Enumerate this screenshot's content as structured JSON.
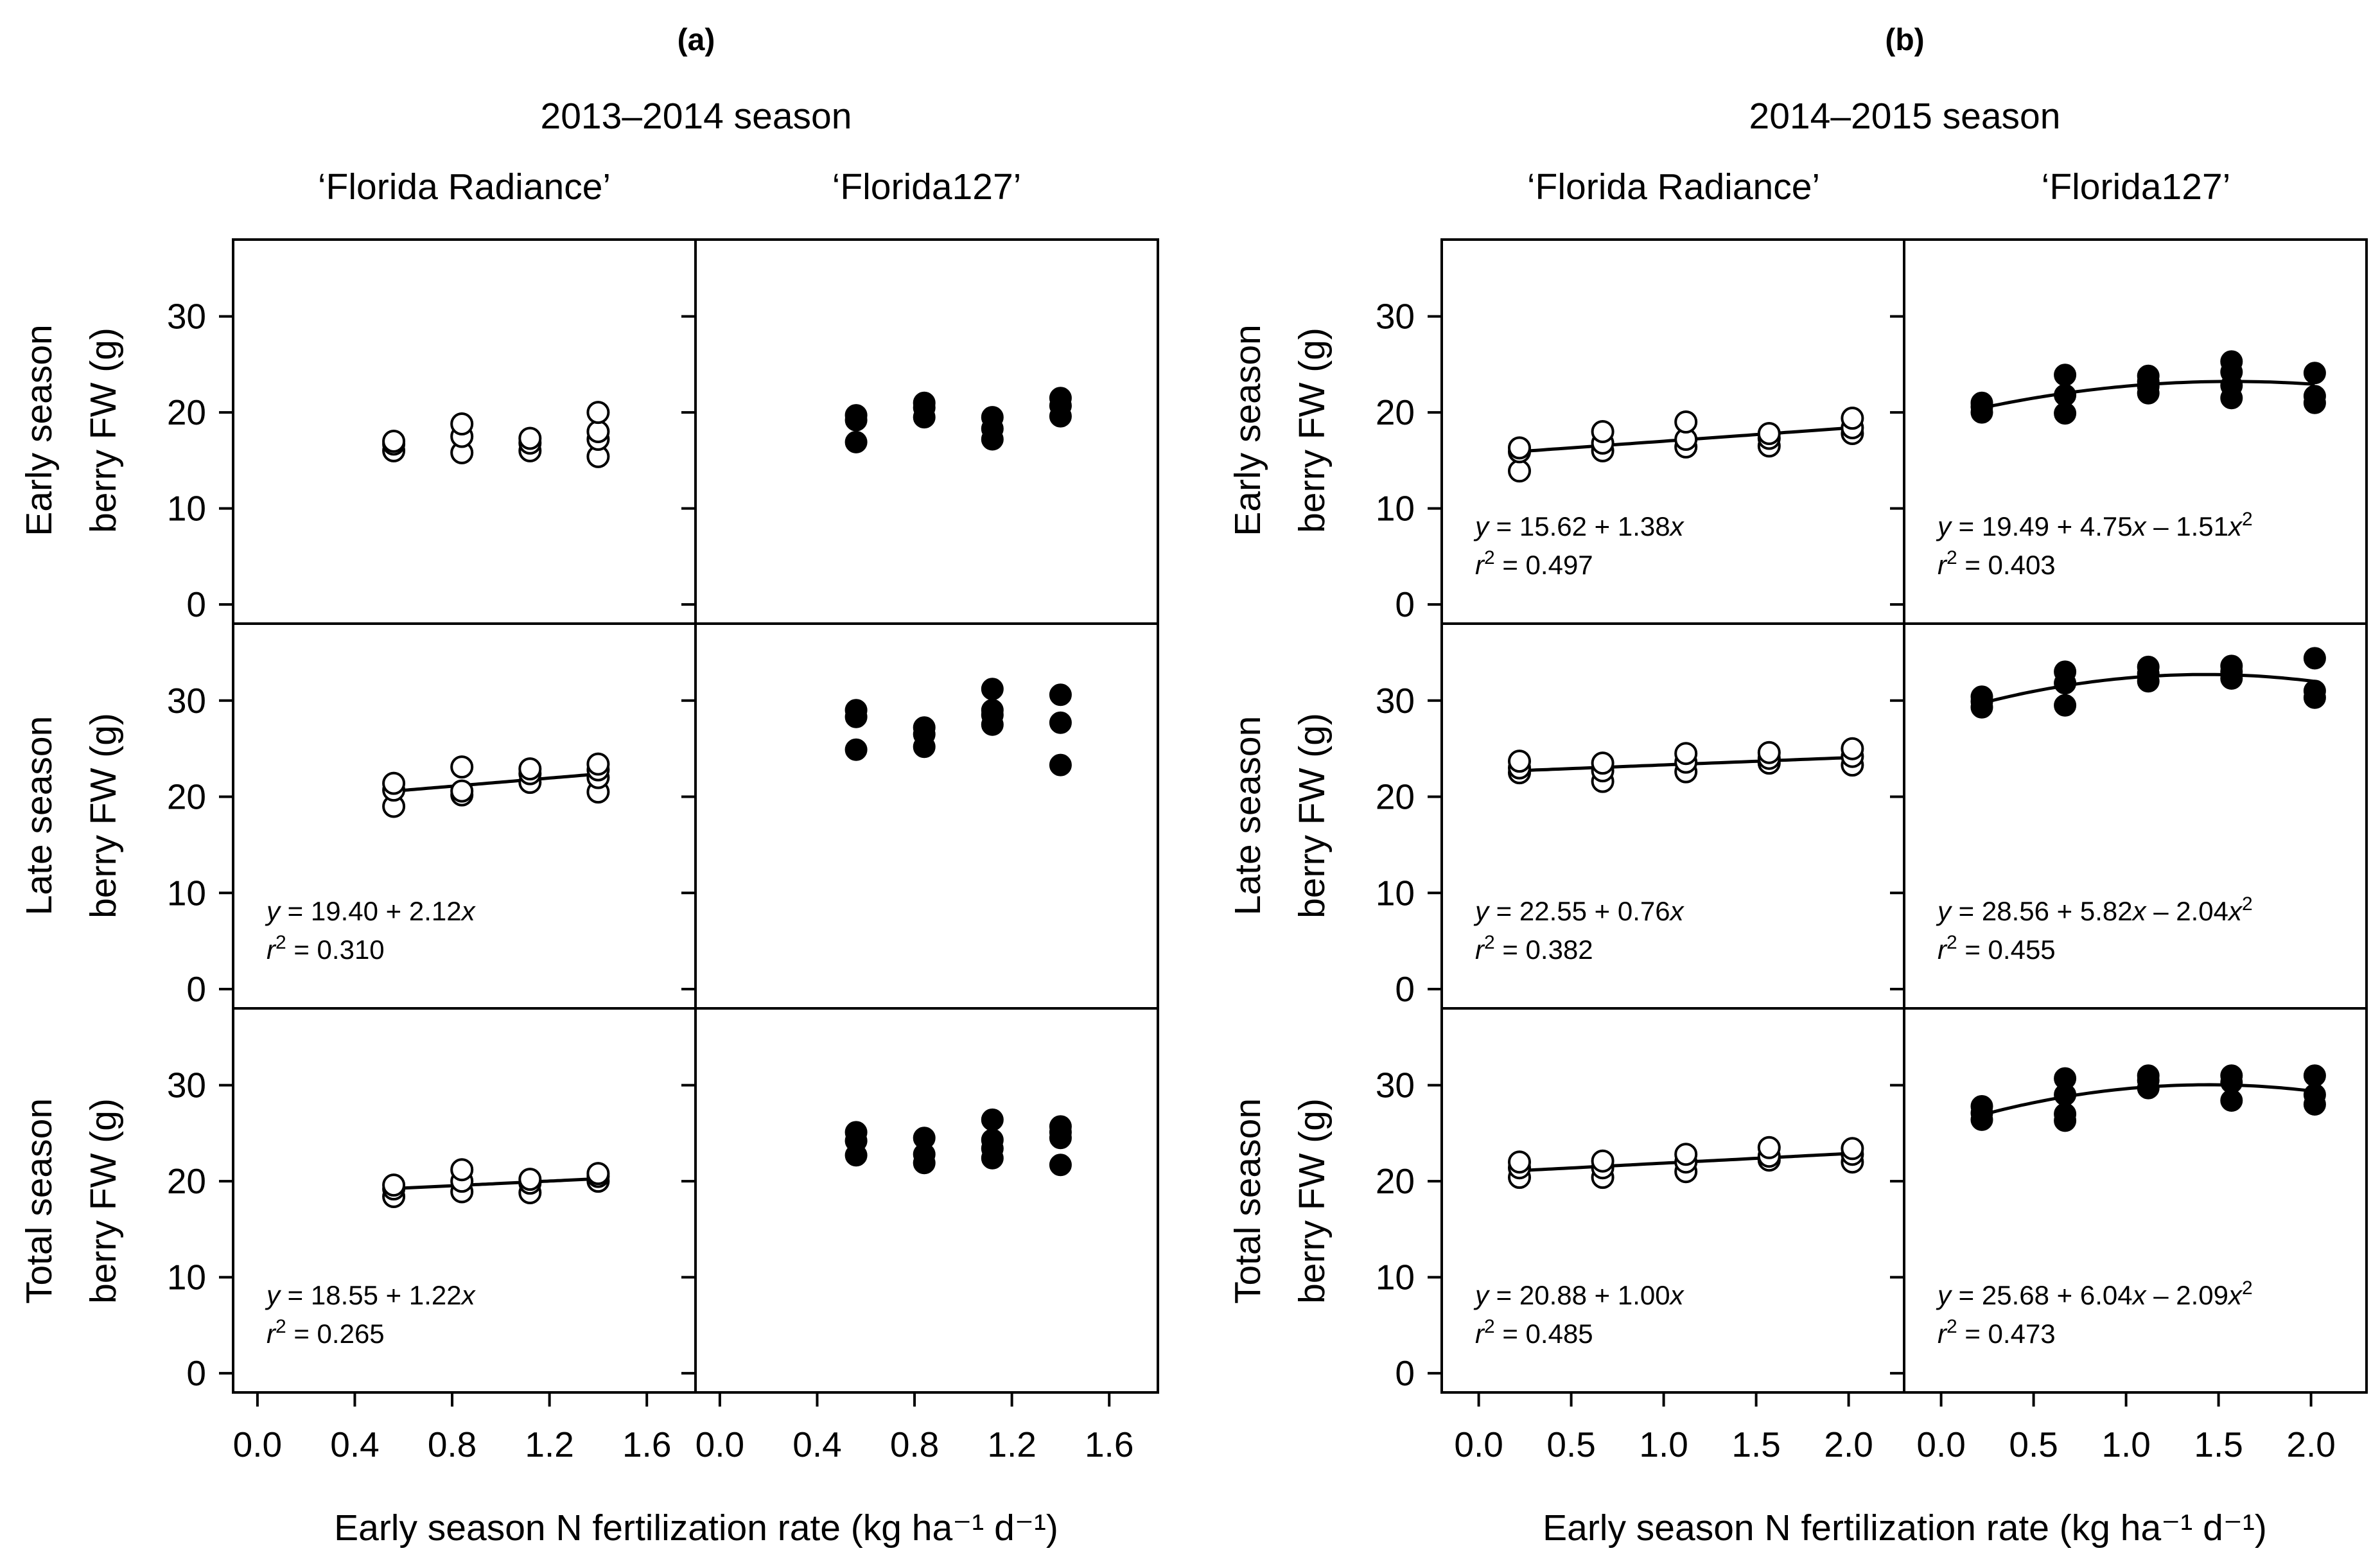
{
  "panel_labels": [
    "(a)",
    "(b)"
  ],
  "seasons": [
    "2013–2014 season",
    "2014–2015 season"
  ],
  "cultivars": [
    "‘Florida Radiance’",
    "‘Florida127’"
  ],
  "row_labels": [
    {
      "line1": "Early season",
      "line2": "berry FW (g)"
    },
    {
      "line1": "Late season",
      "line2": "berry FW (g)"
    },
    {
      "line1": "Total season",
      "line2": "berry FW (g)"
    }
  ],
  "x_axis_label": "Early season N fertilization rate (kg ha⁻¹ d⁻¹)",
  "chart_data": [
    {
      "type": "scatter",
      "season": "2013–2014 season",
      "cultivar": "‘Florida Radiance’",
      "measure": "Early season berry FW (g)",
      "marker": "open",
      "xlim": [
        -0.1,
        1.8
      ],
      "ylim": [
        -2,
        38
      ],
      "xticks": [
        "0.0",
        "0.4",
        "0.8",
        "1.2",
        "1.6"
      ],
      "yticks": [
        "0",
        "10",
        "20",
        "30"
      ],
      "x": [
        0.56,
        0.56,
        0.56,
        0.84,
        0.84,
        0.84,
        1.12,
        1.12,
        1.12,
        1.4,
        1.4,
        1.4,
        1.4
      ],
      "y": [
        16.0,
        16.7,
        17.0,
        15.8,
        17.5,
        18.8,
        16.0,
        16.8,
        17.3,
        15.4,
        17.2,
        18.0,
        20.0
      ],
      "fit": null,
      "equation": null,
      "r2": null
    },
    {
      "type": "scatter",
      "season": "2013–2014 season",
      "cultivar": "‘Florida127’",
      "measure": "Early season berry FW (g)",
      "marker": "filled",
      "xlim": [
        -0.1,
        1.8
      ],
      "ylim": [
        -2,
        38
      ],
      "xticks": [
        "0.0",
        "0.4",
        "0.8",
        "1.2",
        "1.6"
      ],
      "yticks": [
        "0",
        "10",
        "20",
        "30"
      ],
      "x": [
        0.56,
        0.56,
        0.56,
        0.84,
        0.84,
        0.84,
        1.12,
        1.12,
        1.12,
        1.4,
        1.4,
        1.4
      ],
      "y": [
        16.9,
        19.2,
        19.7,
        19.5,
        20.5,
        21.0,
        17.2,
        18.3,
        19.5,
        19.6,
        20.7,
        21.5
      ],
      "fit": null,
      "equation": null,
      "r2": null
    },
    {
      "type": "scatter",
      "season": "2014–2015 season",
      "cultivar": "‘Florida Radiance’",
      "measure": "Early season berry FW (g)",
      "marker": "open",
      "xlim": [
        -0.2,
        2.3
      ],
      "ylim": [
        -2,
        38
      ],
      "xticks": [
        "0.0",
        "0.5",
        "1.0",
        "1.5",
        "2.0"
      ],
      "yticks": [
        "0",
        "10",
        "20",
        "30"
      ],
      "x": [
        0.22,
        0.22,
        0.22,
        0.67,
        0.67,
        0.67,
        1.12,
        1.12,
        1.12,
        1.57,
        1.57,
        1.57,
        2.02,
        2.02,
        2.02
      ],
      "y": [
        13.9,
        15.9,
        16.3,
        16.0,
        16.8,
        18.0,
        16.4,
        17.2,
        19.0,
        16.5,
        17.3,
        17.8,
        17.8,
        18.4,
        19.4
      ],
      "fit": [
        15.62,
        1.38
      ],
      "equation": {
        "prefix": "y",
        "rest": " = 15.62 + 1.38",
        "x": "x",
        "tail": "",
        "sup": ""
      },
      "r2": "0.497"
    },
    {
      "type": "scatter",
      "season": "2014–2015 season",
      "cultivar": "‘Florida127’",
      "measure": "Early season berry FW (g)",
      "marker": "filled",
      "xlim": [
        -0.2,
        2.3
      ],
      "ylim": [
        -2,
        38
      ],
      "xticks": [
        "0.0",
        "0.5",
        "1.0",
        "1.5",
        "2.0"
      ],
      "yticks": [
        "0",
        "10",
        "20",
        "30"
      ],
      "x": [
        0.22,
        0.22,
        0.22,
        0.67,
        0.67,
        0.67,
        1.12,
        1.12,
        1.12,
        1.12,
        1.57,
        1.57,
        1.57,
        1.57,
        2.02,
        2.02,
        2.02
      ],
      "y": [
        20.0,
        20.6,
        21.0,
        19.9,
        21.8,
        23.9,
        22.0,
        22.7,
        23.2,
        23.8,
        21.5,
        22.8,
        24.2,
        25.3,
        21.0,
        21.7,
        24.1
      ],
      "fit": [
        19.49,
        4.75,
        -1.51
      ],
      "equation": {
        "prefix": "y",
        "rest": " = 19.49 + 4.75",
        "x": "x",
        "tail": " – 1.51",
        "sup": "2"
      },
      "r2": "0.403"
    },
    {
      "type": "scatter",
      "season": "2013–2014 season",
      "cultivar": "‘Florida Radiance’",
      "measure": "Late season berry FW (g)",
      "marker": "open",
      "xlim": [
        -0.1,
        1.8
      ],
      "ylim": [
        -2,
        38
      ],
      "xticks": [
        "0.0",
        "0.4",
        "0.8",
        "1.2",
        "1.6"
      ],
      "yticks": [
        "0",
        "10",
        "20",
        "30"
      ],
      "x": [
        0.56,
        0.56,
        0.56,
        0.84,
        0.84,
        0.84,
        1.12,
        1.12,
        1.12,
        1.4,
        1.4,
        1.4,
        1.4
      ],
      "y": [
        19.0,
        20.7,
        21.4,
        20.2,
        20.6,
        23.1,
        21.5,
        22.4,
        22.9,
        20.5,
        22.0,
        22.8,
        23.4
      ],
      "fit": [
        19.4,
        2.12
      ],
      "equation": {
        "prefix": "y",
        "rest": " = 19.40 + 2.12",
        "x": "x",
        "tail": "",
        "sup": ""
      },
      "r2": "0.310"
    },
    {
      "type": "scatter",
      "season": "2013–2014 season",
      "cultivar": "‘Florida127’",
      "measure": "Late season berry FW (g)",
      "marker": "filled",
      "xlim": [
        -0.1,
        1.8
      ],
      "ylim": [
        -2,
        38
      ],
      "xticks": [
        "0.0",
        "0.4",
        "0.8",
        "1.2",
        "1.6"
      ],
      "yticks": [
        "0",
        "10",
        "20",
        "30"
      ],
      "x": [
        0.56,
        0.56,
        0.56,
        0.84,
        0.84,
        0.84,
        1.12,
        1.12,
        1.12,
        1.12,
        1.4,
        1.4,
        1.4
      ],
      "y": [
        24.9,
        28.3,
        29.0,
        25.2,
        26.5,
        27.2,
        27.5,
        28.5,
        29.0,
        31.2,
        23.3,
        27.7,
        30.6
      ],
      "fit": null,
      "equation": null,
      "r2": null
    },
    {
      "type": "scatter",
      "season": "2014–2015 season",
      "cultivar": "‘Florida Radiance’",
      "measure": "Late season berry FW (g)",
      "marker": "open",
      "xlim": [
        -0.2,
        2.3
      ],
      "ylim": [
        -2,
        38
      ],
      "xticks": [
        "0.0",
        "0.5",
        "1.0",
        "1.5",
        "2.0"
      ],
      "yticks": [
        "0",
        "10",
        "20",
        "30"
      ],
      "x": [
        0.22,
        0.22,
        0.22,
        0.67,
        0.67,
        0.67,
        1.12,
        1.12,
        1.12,
        1.57,
        1.57,
        1.57,
        2.02,
        2.02,
        2.02
      ],
      "y": [
        22.5,
        23.0,
        23.7,
        21.6,
        22.7,
        23.5,
        22.6,
        23.6,
        24.5,
        23.5,
        24.0,
        24.6,
        23.3,
        24.2,
        25.0
      ],
      "fit": [
        22.55,
        0.76
      ],
      "equation": {
        "prefix": "y",
        "rest": " = 22.55 + 0.76",
        "x": "x",
        "tail": "",
        "sup": ""
      },
      "r2": "0.382"
    },
    {
      "type": "scatter",
      "season": "2014–2015 season",
      "cultivar": "‘Florida127’",
      "measure": "Late season berry FW (g)",
      "marker": "filled",
      "xlim": [
        -0.2,
        2.3
      ],
      "ylim": [
        -2,
        38
      ],
      "xticks": [
        "0.0",
        "0.5",
        "1.0",
        "1.5",
        "2.0"
      ],
      "yticks": [
        "0",
        "10",
        "20",
        "30"
      ],
      "x": [
        0.22,
        0.22,
        0.22,
        0.67,
        0.67,
        0.67,
        1.12,
        1.12,
        1.12,
        1.57,
        1.57,
        1.57,
        2.02,
        2.02,
        2.02
      ],
      "y": [
        29.3,
        29.9,
        30.4,
        29.5,
        31.8,
        33.0,
        32.0,
        32.8,
        33.5,
        32.3,
        33.0,
        33.6,
        30.3,
        31.0,
        34.4
      ],
      "fit": [
        28.56,
        5.82,
        -2.04
      ],
      "equation": {
        "prefix": "y",
        "rest": " = 28.56 + 5.82",
        "x": "x",
        "tail": " – 2.04",
        "sup": "2"
      },
      "r2": "0.455"
    },
    {
      "type": "scatter",
      "season": "2013–2014 season",
      "cultivar": "‘Florida Radiance’",
      "measure": "Total season berry FW (g)",
      "marker": "open",
      "xlim": [
        -0.1,
        1.8
      ],
      "ylim": [
        -2,
        38
      ],
      "xticks": [
        "0.0",
        "0.4",
        "0.8",
        "1.2",
        "1.6"
      ],
      "yticks": [
        "0",
        "10",
        "20",
        "30"
      ],
      "x": [
        0.56,
        0.56,
        0.56,
        0.84,
        0.84,
        0.84,
        1.12,
        1.12,
        1.12,
        1.4,
        1.4,
        1.4
      ],
      "y": [
        18.4,
        19.2,
        19.6,
        18.9,
        20.0,
        21.2,
        18.8,
        19.8,
        20.2,
        20.0,
        20.5,
        20.8
      ],
      "fit": [
        18.55,
        1.22
      ],
      "equation": {
        "prefix": "y",
        "rest": " = 18.55 + 1.22",
        "x": "x",
        "tail": "",
        "sup": ""
      },
      "r2": "0.265"
    },
    {
      "type": "scatter",
      "season": "2013–2014 season",
      "cultivar": "‘Florida127’",
      "measure": "Total season berry FW (g)",
      "marker": "filled",
      "xlim": [
        -0.1,
        1.8
      ],
      "ylim": [
        -2,
        38
      ],
      "xticks": [
        "0.0",
        "0.4",
        "0.8",
        "1.2",
        "1.6"
      ],
      "yticks": [
        "0",
        "10",
        "20",
        "30"
      ],
      "x": [
        0.56,
        0.56,
        0.56,
        0.84,
        0.84,
        0.84,
        1.12,
        1.12,
        1.12,
        1.12,
        1.4,
        1.4,
        1.4,
        1.4
      ],
      "y": [
        22.7,
        24.2,
        25.1,
        21.9,
        22.8,
        24.5,
        22.4,
        23.4,
        24.3,
        26.4,
        21.7,
        24.5,
        25.1,
        25.7
      ],
      "fit": null,
      "equation": null,
      "r2": null
    },
    {
      "type": "scatter",
      "season": "2014–2015 season",
      "cultivar": "‘Florida Radiance’",
      "measure": "Total season berry FW (g)",
      "marker": "open",
      "xlim": [
        -0.2,
        2.3
      ],
      "ylim": [
        -2,
        38
      ],
      "xticks": [
        "0.0",
        "0.5",
        "1.0",
        "1.5",
        "2.0"
      ],
      "yticks": [
        "0",
        "10",
        "20",
        "30"
      ],
      "x": [
        0.22,
        0.22,
        0.22,
        0.67,
        0.67,
        0.67,
        1.12,
        1.12,
        1.12,
        1.57,
        1.57,
        1.57,
        2.02,
        2.02,
        2.02
      ],
      "y": [
        20.4,
        21.4,
        22.0,
        20.4,
        21.4,
        22.1,
        21.0,
        22.0,
        22.8,
        22.2,
        22.6,
        23.5,
        22.0,
        22.8,
        23.4
      ],
      "fit": [
        20.88,
        1.0
      ],
      "equation": {
        "prefix": "y",
        "rest": " = 20.88 + 1.00",
        "x": "x",
        "tail": "",
        "sup": ""
      },
      "r2": "0.485"
    },
    {
      "type": "scatter",
      "season": "2014–2015 season",
      "cultivar": "‘Florida127’",
      "measure": "Total season berry FW (g)",
      "marker": "filled",
      "xlim": [
        -0.2,
        2.3
      ],
      "ylim": [
        -2,
        38
      ],
      "xticks": [
        "0.0",
        "0.5",
        "1.0",
        "1.5",
        "2.0"
      ],
      "yticks": [
        "0",
        "10",
        "20",
        "30"
      ],
      "x": [
        0.22,
        0.22,
        0.22,
        0.67,
        0.67,
        0.67,
        0.67,
        1.12,
        1.12,
        1.12,
        1.57,
        1.57,
        1.57,
        2.02,
        2.02,
        2.02
      ],
      "y": [
        26.4,
        27.1,
        27.8,
        26.3,
        27.0,
        29.0,
        30.7,
        29.7,
        30.5,
        31.0,
        28.4,
        30.3,
        31.0,
        28.0,
        29.0,
        31.0
      ],
      "fit": [
        25.68,
        6.04,
        -2.09
      ],
      "equation": {
        "prefix": "y",
        "rest": " = 25.68 + 6.04",
        "x": "x",
        "tail": " – 2.09",
        "sup": "2"
      },
      "r2": "0.473"
    }
  ]
}
